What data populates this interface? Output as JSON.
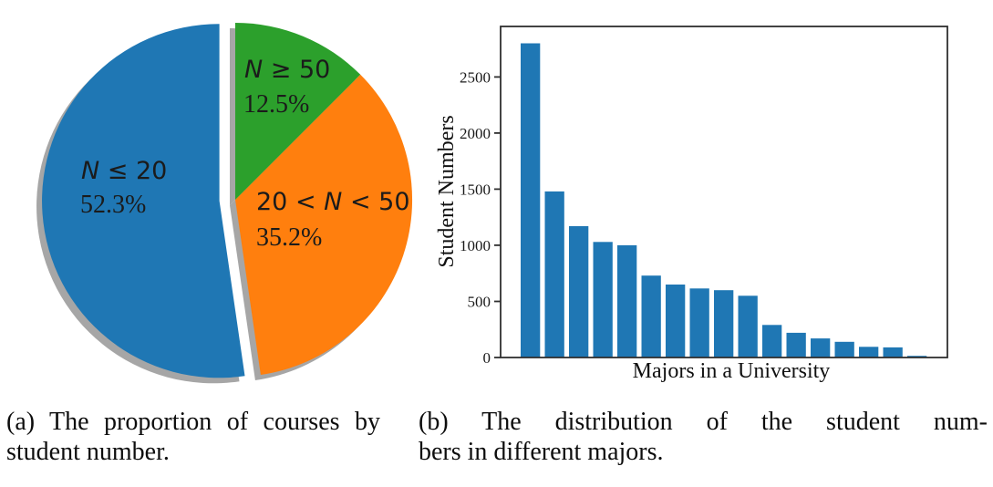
{
  "figure": {
    "captions": {
      "a": {
        "lines": [
          "(a) The proportion of courses by",
          "student number."
        ]
      },
      "b": {
        "lines": [
          "(b) The distribution of the student num-",
          "bers in different majors."
        ]
      }
    }
  },
  "chart_data": [
    {
      "id": "pie-courses-by-student-number",
      "type": "pie",
      "start_angle": 90,
      "counterclockwise": true,
      "shadow": true,
      "shadow_color": "#a6a6a6",
      "slices": [
        {
          "label": "N ≤ 20",
          "pct_label": "52.3%",
          "value": 52.3,
          "color": "#1f77b4",
          "explode": 0.09
        },
        {
          "label": "20 < N < 50",
          "pct_label": "35.2%",
          "value": 35.2,
          "color": "#ff7f0e",
          "explode": 0
        },
        {
          "label": "N ≥ 50",
          "pct_label": "12.5%",
          "value": 12.5,
          "color": "#2ca02c",
          "explode": 0
        }
      ]
    },
    {
      "id": "bar-students-per-major",
      "type": "bar",
      "xlabel": "Majors in a University",
      "ylabel": "Student Numbers",
      "ylim": [
        0,
        2950
      ],
      "yticks": [
        0,
        500,
        1000,
        1500,
        2000,
        2500
      ],
      "grid": false,
      "bar_color": "#1f77b4",
      "frame_color": "#2f2f2f",
      "values": [
        2800,
        1480,
        1170,
        1030,
        1000,
        730,
        650,
        615,
        600,
        550,
        290,
        220,
        170,
        140,
        95,
        90,
        15
      ]
    }
  ]
}
